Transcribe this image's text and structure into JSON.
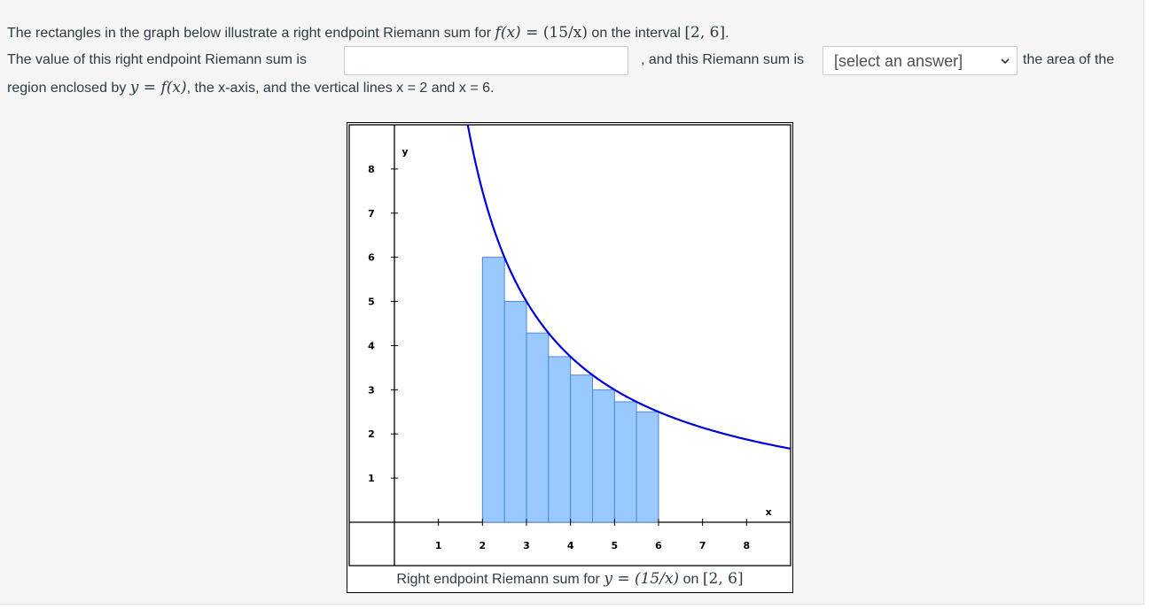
{
  "question": {
    "line1_prefix": "The rectangles in the graph below illustrate a right endpoint Riemann sum for ",
    "func_lhs": "f(x)",
    "equals": " = ",
    "func_rhs": "(15/x)",
    "line1_mid": " on the interval ",
    "interval": "[2, 6]",
    "period": ".",
    "line2_prefix": "The value of this right endpoint Riemann sum is",
    "line2_mid": ", and this Riemann sum is",
    "line2_suffix": "the area of the",
    "line3_prefix": "region enclosed by ",
    "y_var": "y",
    "line3_suffix": ", the x-axis, and the vertical lines x = 2 and x = 6."
  },
  "answer_input": {
    "value": "",
    "placeholder": ""
  },
  "answer_select": {
    "selected": "[select an answer]",
    "icon": "chevron-down-icon"
  },
  "graph": {
    "caption_prefix": "Right endpoint Riemann sum for ",
    "caption_eq": "y = (15/x)",
    "caption_on": " on ",
    "caption_interval": "[2, 6]",
    "x_axis_label": "x",
    "y_axis_label": "y",
    "colors": {
      "curve": "#0000dd",
      "bar_fill": "#99c9ff",
      "bar_stroke": "#4d88dd",
      "grid": "#000000"
    }
  },
  "chart_data": {
    "type": "bar",
    "function": "15/x",
    "interval": [
      2,
      6
    ],
    "xlim": [
      0,
      9
    ],
    "ylim": [
      0,
      9
    ],
    "x_ticks": [
      1,
      2,
      3,
      4,
      5,
      6,
      7,
      8
    ],
    "y_ticks": [
      1,
      2,
      3,
      4,
      5,
      6,
      7,
      8
    ],
    "xlabel": "x",
    "ylabel": "y",
    "bars": [
      {
        "left": 2.0,
        "right": 2.5,
        "height": 6.0
      },
      {
        "left": 2.5,
        "right": 3.0,
        "height": 5.0
      },
      {
        "left": 3.0,
        "right": 3.5,
        "height": 4.2857
      },
      {
        "left": 3.5,
        "right": 4.0,
        "height": 3.75
      },
      {
        "left": 4.0,
        "right": 4.5,
        "height": 3.3333
      },
      {
        "left": 4.5,
        "right": 5.0,
        "height": 3.0
      },
      {
        "left": 5.0,
        "right": 5.5,
        "height": 2.7273
      },
      {
        "left": 5.5,
        "right": 6.0,
        "height": 2.5
      }
    ]
  }
}
